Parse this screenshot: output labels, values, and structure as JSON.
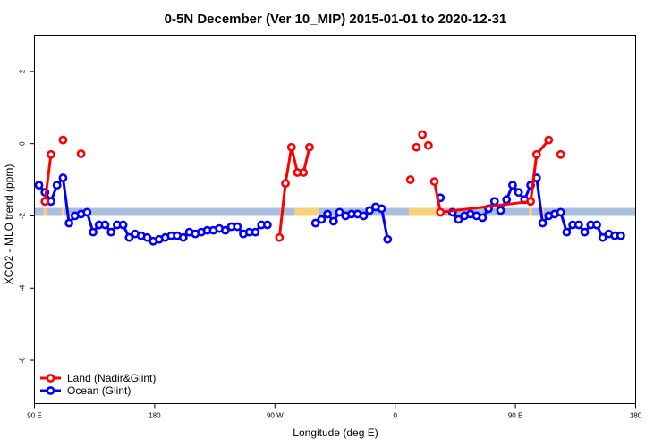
{
  "chart_data": {
    "type": "line",
    "title": "0-5N December (Ver 10_MIP)   2015-01-01 to 2020-12-31",
    "xlabel": "Longitude (deg E)",
    "ylabel": "XCO2 - MLO trend (ppm)",
    "xlim": [
      90,
      450
    ],
    "ylim": [
      -7.2,
      3
    ],
    "x_ticks": [
      {
        "value": 90,
        "label": "90 E"
      },
      {
        "value": 162,
        "label": "180"
      },
      {
        "value": 234,
        "label": "90 W"
      },
      {
        "value": 306,
        "label": "0"
      },
      {
        "value": 378,
        "label": "90 E"
      },
      {
        "value": 450,
        "label": "180"
      }
    ],
    "y_ticks": [
      2,
      0,
      -2,
      -4,
      -6
    ],
    "grid": false,
    "legend_position": "bottom-left",
    "band": {
      "y_low": -2.0,
      "y_high": -1.78,
      "color": "#a9bedc",
      "land_color": "#f7d27a"
    },
    "land_spans": [
      [
        95.4,
        97.2
      ],
      [
        106.2,
        108
      ],
      [
        245.8,
        260.2
      ],
      [
        314.2,
        332.2
      ],
      [
        386.1,
        387.9
      ],
      [
        393.3,
        395.1
      ]
    ],
    "series": [
      {
        "name": "Land (Nadir&Glint)",
        "color": "#ff0000",
        "points": [
          [
            96.3,
            -1.6
          ],
          [
            99.9,
            -0.3
          ],
          [
            107.1,
            0.1
          ],
          [
            117.9,
            -0.28
          ],
          [
            236.7,
            -2.6
          ],
          [
            240.3,
            -1.1
          ],
          [
            243.9,
            -0.1
          ],
          [
            247.5,
            -0.8
          ],
          [
            251.1,
            -0.8
          ],
          [
            254.7,
            -0.1
          ],
          [
            315.1,
            -1.0
          ],
          [
            318.7,
            -0.1
          ],
          [
            322.3,
            0.25
          ],
          [
            325.9,
            -0.05
          ],
          [
            329.5,
            -1.05
          ],
          [
            333.1,
            -1.9
          ],
          [
            387.1,
            -1.6
          ],
          [
            390.7,
            -0.3
          ],
          [
            397.9,
            0.1
          ],
          [
            405.1,
            -0.3
          ]
        ],
        "segments": [
          [
            0,
            1
          ],
          [
            4,
            5,
            6,
            7,
            8,
            9
          ],
          [
            14,
            15,
            16,
            17,
            18
          ],
          [
            16,
            17
          ]
        ]
      },
      {
        "name": "Ocean (Glint)",
        "color": "#0000ff",
        "points": [
          [
            92.7,
            -1.15
          ],
          [
            96.3,
            -1.35
          ],
          [
            99.9,
            -1.6
          ],
          [
            103.5,
            -1.15
          ],
          [
            107.1,
            -0.95
          ],
          [
            110.7,
            -2.2
          ],
          [
            114.3,
            -2.0
          ],
          [
            117.9,
            -1.95
          ],
          [
            121.5,
            -1.9
          ],
          [
            125.1,
            -2.45
          ],
          [
            128.7,
            -2.25
          ],
          [
            132.3,
            -2.25
          ],
          [
            135.9,
            -2.45
          ],
          [
            139.5,
            -2.25
          ],
          [
            143.1,
            -2.25
          ],
          [
            146.7,
            -2.6
          ],
          [
            150.3,
            -2.5
          ],
          [
            153.9,
            -2.55
          ],
          [
            157.5,
            -2.6
          ],
          [
            161.1,
            -2.7
          ],
          [
            164.7,
            -2.65
          ],
          [
            168.3,
            -2.6
          ],
          [
            171.9,
            -2.55
          ],
          [
            175.5,
            -2.55
          ],
          [
            179.1,
            -2.6
          ],
          [
            182.7,
            -2.45
          ],
          [
            186.3,
            -2.5
          ],
          [
            189.9,
            -2.45
          ],
          [
            193.5,
            -2.4
          ],
          [
            197.1,
            -2.4
          ],
          [
            200.7,
            -2.35
          ],
          [
            204.3,
            -2.4
          ],
          [
            207.9,
            -2.3
          ],
          [
            211.5,
            -2.3
          ],
          [
            215.1,
            -2.5
          ],
          [
            218.7,
            -2.45
          ],
          [
            222.3,
            -2.45
          ],
          [
            225.9,
            -2.25
          ],
          [
            229.5,
            -2.25
          ],
          [
            258.3,
            -2.2
          ],
          [
            261.9,
            -2.1
          ],
          [
            265.5,
            -1.95
          ],
          [
            269.1,
            -2.15
          ],
          [
            272.7,
            -1.9
          ],
          [
            276.3,
            -2.0
          ],
          [
            279.9,
            -1.95
          ],
          [
            283.5,
            -1.95
          ],
          [
            287.1,
            -2.0
          ],
          [
            290.7,
            -1.85
          ],
          [
            294.3,
            -1.75
          ],
          [
            297.9,
            -1.8
          ],
          [
            301.5,
            -2.65
          ],
          [
            333.1,
            -1.5
          ],
          [
            340.3,
            -1.9
          ],
          [
            343.9,
            -2.1
          ],
          [
            347.5,
            -2.0
          ],
          [
            351.1,
            -1.95
          ],
          [
            354.7,
            -2.0
          ],
          [
            358.3,
            -2.05
          ],
          [
            361.9,
            -1.8
          ],
          [
            365.5,
            -1.6
          ],
          [
            369.1,
            -1.85
          ],
          [
            372.7,
            -1.55
          ],
          [
            376.3,
            -1.15
          ],
          [
            379.9,
            -1.35
          ],
          [
            383.5,
            -1.55
          ],
          [
            387.1,
            -1.15
          ],
          [
            390.7,
            -0.95
          ],
          [
            394.3,
            -2.2
          ],
          [
            397.9,
            -2.0
          ],
          [
            401.5,
            -1.95
          ],
          [
            405.1,
            -1.9
          ],
          [
            408.7,
            -2.45
          ],
          [
            412.3,
            -2.25
          ],
          [
            415.9,
            -2.25
          ],
          [
            419.5,
            -2.45
          ],
          [
            423.1,
            -2.25
          ],
          [
            426.7,
            -2.25
          ],
          [
            430.3,
            -2.6
          ],
          [
            433.9,
            -2.5
          ],
          [
            437.5,
            -2.55
          ],
          [
            441.1,
            -2.55
          ]
        ]
      }
    ]
  }
}
